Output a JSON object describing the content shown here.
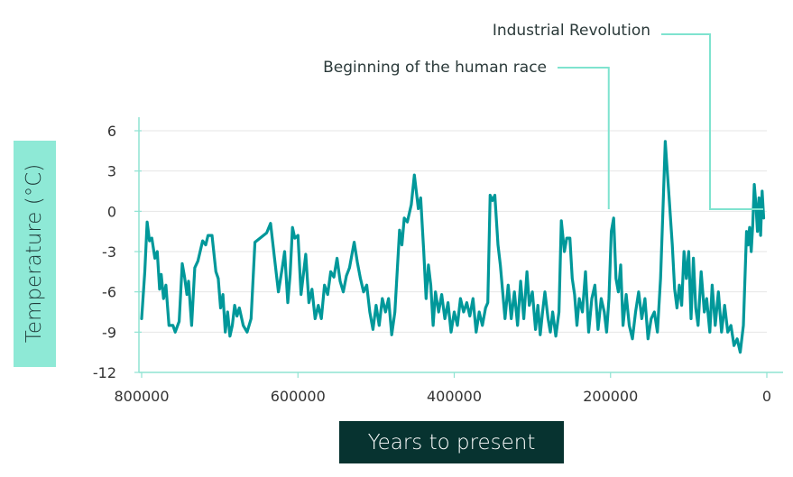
{
  "chart_data": {
    "type": "line",
    "title": "",
    "xlabel": "Years to present",
    "ylabel": "Temperature (°C)",
    "xlim": [
      800000,
      0
    ],
    "ylim": [
      -12,
      6
    ],
    "x_ticks": [
      800000,
      600000,
      400000,
      200000,
      0
    ],
    "y_ticks": [
      6,
      3,
      0,
      -3,
      -6,
      -9,
      -12
    ],
    "grid": true,
    "line_color": "#00989a",
    "annotation_color": "#7fe3cf",
    "annotations": [
      {
        "text": "Industrial Revolution",
        "x": 0
      },
      {
        "text": "Beginning of the human race",
        "x": 200000
      }
    ],
    "series": [
      {
        "points": [
          [
            800000,
            -8
          ],
          [
            796000,
            -4.5
          ],
          [
            793000,
            -0.8
          ],
          [
            790000,
            -2.2
          ],
          [
            787000,
            -2
          ],
          [
            783000,
            -3.5
          ],
          [
            780000,
            -3
          ],
          [
            777000,
            -5.8
          ],
          [
            775000,
            -4.7
          ],
          [
            772000,
            -6.5
          ],
          [
            769000,
            -5.5
          ],
          [
            765000,
            -8.5
          ],
          [
            760000,
            -8.5
          ],
          [
            757000,
            -9
          ],
          [
            752000,
            -8.2
          ],
          [
            748000,
            -3.9
          ],
          [
            745000,
            -4.9
          ],
          [
            742000,
            -6.2
          ],
          [
            740000,
            -5.2
          ],
          [
            736000,
            -8.5
          ],
          [
            732000,
            -4.2
          ],
          [
            728000,
            -3.7
          ],
          [
            722000,
            -2.2
          ],
          [
            718000,
            -2.5
          ],
          [
            715000,
            -1.8
          ],
          [
            710000,
            -1.8
          ],
          [
            705000,
            -4.5
          ],
          [
            702000,
            -5
          ],
          [
            699000,
            -7.2
          ],
          [
            696000,
            -6.2
          ],
          [
            693000,
            -9
          ],
          [
            690000,
            -7.5
          ],
          [
            687000,
            -9.3
          ],
          [
            684000,
            -8.5
          ],
          [
            681000,
            -7
          ],
          [
            678000,
            -7.8
          ],
          [
            675000,
            -7.2
          ],
          [
            670000,
            -8.5
          ],
          [
            665000,
            -9
          ],
          [
            660000,
            -8
          ],
          [
            655000,
            -2.3
          ],
          [
            640000,
            -1.6
          ],
          [
            635000,
            -0.9
          ],
          [
            630000,
            -3.5
          ],
          [
            625000,
            -6
          ],
          [
            620000,
            -4.2
          ],
          [
            617000,
            -3
          ],
          [
            613000,
            -6.8
          ],
          [
            610000,
            -4.7
          ],
          [
            607000,
            -1.2
          ],
          [
            604000,
            -2
          ],
          [
            600000,
            -1.8
          ],
          [
            596000,
            -6.2
          ],
          [
            590000,
            -3.2
          ],
          [
            586000,
            -6.8
          ],
          [
            582000,
            -5.8
          ],
          [
            578000,
            -8
          ],
          [
            574000,
            -7
          ],
          [
            570000,
            -8
          ],
          [
            566000,
            -5.5
          ],
          [
            562000,
            -6.2
          ],
          [
            558000,
            -4.5
          ],
          [
            554000,
            -4.9
          ],
          [
            550000,
            -3.5
          ],
          [
            546000,
            -5.2
          ],
          [
            542000,
            -6
          ],
          [
            538000,
            -4.8
          ],
          [
            534000,
            -4.2
          ],
          [
            528000,
            -2.3
          ],
          [
            524000,
            -3.8
          ],
          [
            520000,
            -5
          ],
          [
            516000,
            -6
          ],
          [
            512000,
            -5.5
          ],
          [
            508000,
            -7.5
          ],
          [
            504000,
            -8.8
          ],
          [
            500000,
            -7
          ],
          [
            496000,
            -8.5
          ],
          [
            492000,
            -6.5
          ],
          [
            488000,
            -7.5
          ],
          [
            484000,
            -6.5
          ],
          [
            480000,
            -9.2
          ],
          [
            476000,
            -7.5
          ],
          [
            470000,
            -1.4
          ],
          [
            467000,
            -2.5
          ],
          [
            464000,
            -0.5
          ],
          [
            460000,
            -0.8
          ],
          [
            455000,
            0.5
          ],
          [
            451000,
            2.7
          ],
          [
            446000,
            0.2
          ],
          [
            443000,
            1
          ],
          [
            439000,
            -3
          ],
          [
            436000,
            -6.5
          ],
          [
            433000,
            -4
          ],
          [
            430000,
            -5.5
          ],
          [
            427000,
            -8.5
          ],
          [
            424000,
            -6
          ],
          [
            420000,
            -7.5
          ],
          [
            416000,
            -6.2
          ],
          [
            412000,
            -8
          ],
          [
            408000,
            -6.8
          ],
          [
            404000,
            -9
          ],
          [
            400000,
            -7.5
          ],
          [
            396000,
            -8.5
          ],
          [
            392000,
            -6.5
          ],
          [
            388000,
            -7.5
          ],
          [
            384000,
            -6.8
          ],
          [
            380000,
            -7.8
          ],
          [
            376000,
            -6.5
          ],
          [
            372000,
            -9
          ],
          [
            368000,
            -7.5
          ],
          [
            364000,
            -8.5
          ],
          [
            360000,
            -7.2
          ],
          [
            357000,
            -6.8
          ],
          [
            354000,
            1.2
          ],
          [
            351000,
            0.8
          ],
          [
            348000,
            1.2
          ],
          [
            344000,
            -2.5
          ],
          [
            341000,
            -4
          ],
          [
            338000,
            -6
          ],
          [
            335000,
            -8
          ],
          [
            331000,
            -5.5
          ],
          [
            327000,
            -8
          ],
          [
            323000,
            -6
          ],
          [
            319000,
            -8.5
          ],
          [
            315000,
            -5.2
          ],
          [
            311000,
            -8
          ],
          [
            307000,
            -4.5
          ],
          [
            304000,
            -7
          ],
          [
            300000,
            -6
          ],
          [
            296000,
            -8.8
          ],
          [
            293000,
            -7
          ],
          [
            290000,
            -9.2
          ],
          [
            287000,
            -7.5
          ],
          [
            284000,
            -6
          ],
          [
            280000,
            -8
          ],
          [
            277000,
            -9
          ],
          [
            274000,
            -7.5
          ],
          [
            270000,
            -9.3
          ],
          [
            266000,
            -7.5
          ],
          [
            263000,
            -0.7
          ],
          [
            259000,
            -3
          ],
          [
            256000,
            -2
          ],
          [
            252000,
            -2
          ],
          [
            249000,
            -5
          ],
          [
            246000,
            -6.2
          ],
          [
            243000,
            -8.5
          ],
          [
            240000,
            -6.5
          ],
          [
            236000,
            -7.5
          ],
          [
            232000,
            -4.5
          ],
          [
            228000,
            -9
          ],
          [
            224000,
            -6.5
          ],
          [
            220000,
            -5.5
          ],
          [
            216000,
            -8.8
          ],
          [
            212000,
            -6.5
          ],
          [
            208000,
            -7.5
          ],
          [
            205000,
            -9
          ],
          [
            202000,
            -6.5
          ],
          [
            199000,
            -1.5
          ],
          [
            196000,
            -0.5
          ],
          [
            193000,
            -5
          ],
          [
            190000,
            -6
          ],
          [
            187000,
            -4
          ],
          [
            184000,
            -8.5
          ],
          [
            180000,
            -6.2
          ],
          [
            176000,
            -8.5
          ],
          [
            172000,
            -9.5
          ],
          [
            168000,
            -7.5
          ],
          [
            164000,
            -6
          ],
          [
            160000,
            -8
          ],
          [
            156000,
            -6.5
          ],
          [
            152000,
            -9.5
          ],
          [
            148000,
            -8
          ],
          [
            144000,
            -7.5
          ],
          [
            140000,
            -9
          ],
          [
            136000,
            -5
          ],
          [
            133000,
            0
          ],
          [
            130000,
            5.2
          ],
          [
            128000,
            3.5
          ],
          [
            125000,
            1
          ],
          [
            121000,
            -2.5
          ],
          [
            118000,
            -5.8
          ],
          [
            115000,
            -7.2
          ],
          [
            112000,
            -5.5
          ],
          [
            109000,
            -7
          ],
          [
            106000,
            -3
          ],
          [
            103000,
            -5
          ],
          [
            100000,
            -3
          ],
          [
            97000,
            -8
          ],
          [
            94000,
            -3.5
          ],
          [
            91000,
            -7.2
          ],
          [
            88000,
            -8.5
          ],
          [
            84000,
            -4.5
          ],
          [
            80000,
            -7.5
          ],
          [
            77000,
            -6.5
          ],
          [
            73000,
            -9
          ],
          [
            70000,
            -5.5
          ],
          [
            66000,
            -8.5
          ],
          [
            62000,
            -6
          ],
          [
            58000,
            -9
          ],
          [
            54000,
            -7
          ],
          [
            50000,
            -9
          ],
          [
            46000,
            -8.5
          ],
          [
            42000,
            -10
          ],
          [
            38000,
            -9.5
          ],
          [
            34000,
            -10.5
          ],
          [
            30000,
            -8.5
          ],
          [
            26000,
            -1.5
          ],
          [
            24000,
            -2.5
          ],
          [
            22000,
            -1.2
          ],
          [
            20000,
            -3
          ],
          [
            18000,
            -1
          ],
          [
            16000,
            2
          ],
          [
            14000,
            0.5
          ],
          [
            12000,
            -1.5
          ],
          [
            10000,
            1
          ],
          [
            8000,
            -1.8
          ],
          [
            6000,
            1.5
          ],
          [
            4000,
            -0.5
          ]
        ]
      }
    ]
  }
}
